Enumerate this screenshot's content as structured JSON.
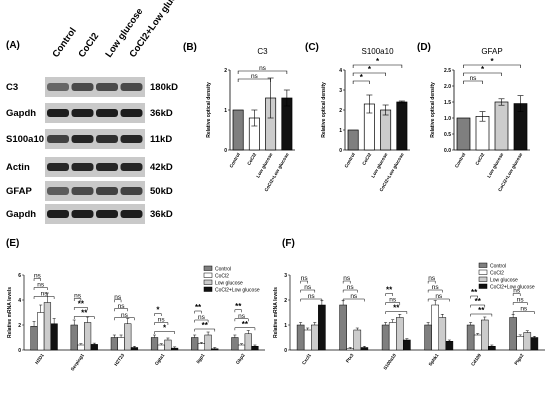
{
  "panels": {
    "a": "(A)",
    "b": "(B)",
    "c": "(C)",
    "d": "(D)",
    "e": "(E)",
    "f": "(F)"
  },
  "western_blot": {
    "lanes": [
      "Control",
      "CoCl2",
      "Low glucose",
      "CoCl2+Low glucose"
    ],
    "rows": [
      {
        "protein": "C3",
        "size": "180kD"
      },
      {
        "protein": "Gapdh",
        "size": "36kD"
      },
      {
        "protein": "S100a10",
        "size": "11kD"
      },
      {
        "protein": "Actin",
        "size": "42kD"
      },
      {
        "protein": "GFAP",
        "size": "50kD"
      },
      {
        "protein": "Gapdh",
        "size": "36kD"
      }
    ]
  },
  "colors": {
    "control": "#7f7f7f",
    "cocl2": "#ffffff",
    "low_glucose": "#cccccc",
    "combo": "#111111"
  },
  "chart_data": [
    {
      "type": "bar",
      "title": "C3",
      "ylabel": "Relative optical density",
      "categories": [
        "Control",
        "CoCl2",
        "Low glucose",
        "CoCl2+Low glucose"
      ],
      "values": [
        1.0,
        0.8,
        1.3,
        1.3
      ],
      "errors": [
        0.0,
        0.2,
        0.5,
        0.2
      ],
      "ylim": [
        0,
        2
      ],
      "yticks": [
        "0",
        "1",
        "2"
      ],
      "significance": [
        "ns",
        "ns"
      ]
    },
    {
      "type": "bar",
      "title": "S100a10",
      "ylabel": "Relative optical density",
      "categories": [
        "Control",
        "CoCl2",
        "Low glucose",
        "CoCl2+Low glucose"
      ],
      "values": [
        1.0,
        2.3,
        2.0,
        2.4
      ],
      "errors": [
        0.0,
        0.45,
        0.25,
        0.05
      ],
      "ylim": [
        0,
        4
      ],
      "yticks": [
        "0",
        "1",
        "2",
        "3",
        "4"
      ],
      "significance": [
        "*",
        "*",
        "*"
      ]
    },
    {
      "type": "bar",
      "title": "GFAP",
      "ylabel": "Relative optical density",
      "categories": [
        "Control",
        "CoCl2",
        "Low glucose",
        "CoCl2+Low glucose"
      ],
      "values": [
        1.0,
        1.05,
        1.5,
        1.45
      ],
      "errors": [
        0.0,
        0.15,
        0.1,
        0.25
      ],
      "ylim": [
        0,
        2.5
      ],
      "yticks": [
        "0.0",
        "0.5",
        "1.0",
        "1.5",
        "2.0",
        "2.5"
      ],
      "significance": [
        "ns",
        "*",
        "*"
      ]
    },
    {
      "type": "bar",
      "ylabel": "Relative mRNA levels",
      "legend": [
        "Control",
        "CoCl2",
        "Low glucose",
        "CoCl2+Low glucose"
      ],
      "legend_placement": "top-right",
      "categories": [
        "H2D1",
        "Serping1",
        "H2T23",
        "Ggta1",
        "Iigp1",
        "Gbp2"
      ],
      "series": [
        {
          "name": "Control",
          "values": [
            1.9,
            2.0,
            1.0,
            1.0,
            1.0,
            1.0
          ]
        },
        {
          "name": "CoCl2",
          "values": [
            3.0,
            0.4,
            1.0,
            0.4,
            0.5,
            0.4
          ]
        },
        {
          "name": "Low glucose",
          "values": [
            3.8,
            2.2,
            2.1,
            0.8,
            1.2,
            1.3
          ]
        },
        {
          "name": "CoCl2+Low glucose",
          "values": [
            2.1,
            0.45,
            0.2,
            0.15,
            0.1,
            0.3
          ]
        }
      ],
      "ylim": [
        0,
        6
      ],
      "yticks": [
        "0",
        "2",
        "4",
        "6"
      ],
      "significance": [
        [
          "ns",
          "ns",
          "ns"
        ],
        [
          "ns",
          "**",
          "**"
        ],
        [
          "ns",
          "ns",
          "ns"
        ],
        [
          "*",
          "ns",
          "*"
        ],
        [
          "**",
          "ns",
          "**"
        ],
        [
          "**",
          "ns",
          "**"
        ]
      ]
    },
    {
      "type": "bar",
      "ylabel": "Relative mRNA levels",
      "legend": [
        "Control",
        "CoCl2",
        "Low glucose",
        "CoCl2+Low glucose"
      ],
      "legend_placement": "top-right",
      "categories": [
        "Cxcl1",
        "Ptx3",
        "S100a10",
        "Sphk1",
        "Cd109",
        "Ptgs2"
      ],
      "series": [
        {
          "name": "Control",
          "values": [
            1.0,
            1.8,
            1.0,
            1.0,
            1.0,
            1.3
          ]
        },
        {
          "name": "CoCl2",
          "values": [
            0.8,
            0.05,
            1.1,
            1.8,
            0.6,
            0.55
          ]
        },
        {
          "name": "Low glucose",
          "values": [
            1.0,
            0.8,
            1.3,
            1.3,
            1.2,
            0.7
          ]
        },
        {
          "name": "CoCl2+Low glucose",
          "values": [
            1.8,
            0.1,
            0.4,
            0.35,
            0.15,
            0.5
          ]
        }
      ],
      "ylim": [
        0,
        3
      ],
      "yticks": [
        "0",
        "1",
        "2",
        "3"
      ],
      "significance": [
        [
          "ns",
          "ns",
          "ns"
        ],
        [
          "ns",
          "ns",
          "ns"
        ],
        [
          "**",
          "ns",
          "**"
        ],
        [
          "ns",
          "ns",
          "ns"
        ],
        [
          "**",
          "**",
          "**"
        ],
        [
          "ns",
          "ns",
          "ns"
        ]
      ]
    }
  ]
}
